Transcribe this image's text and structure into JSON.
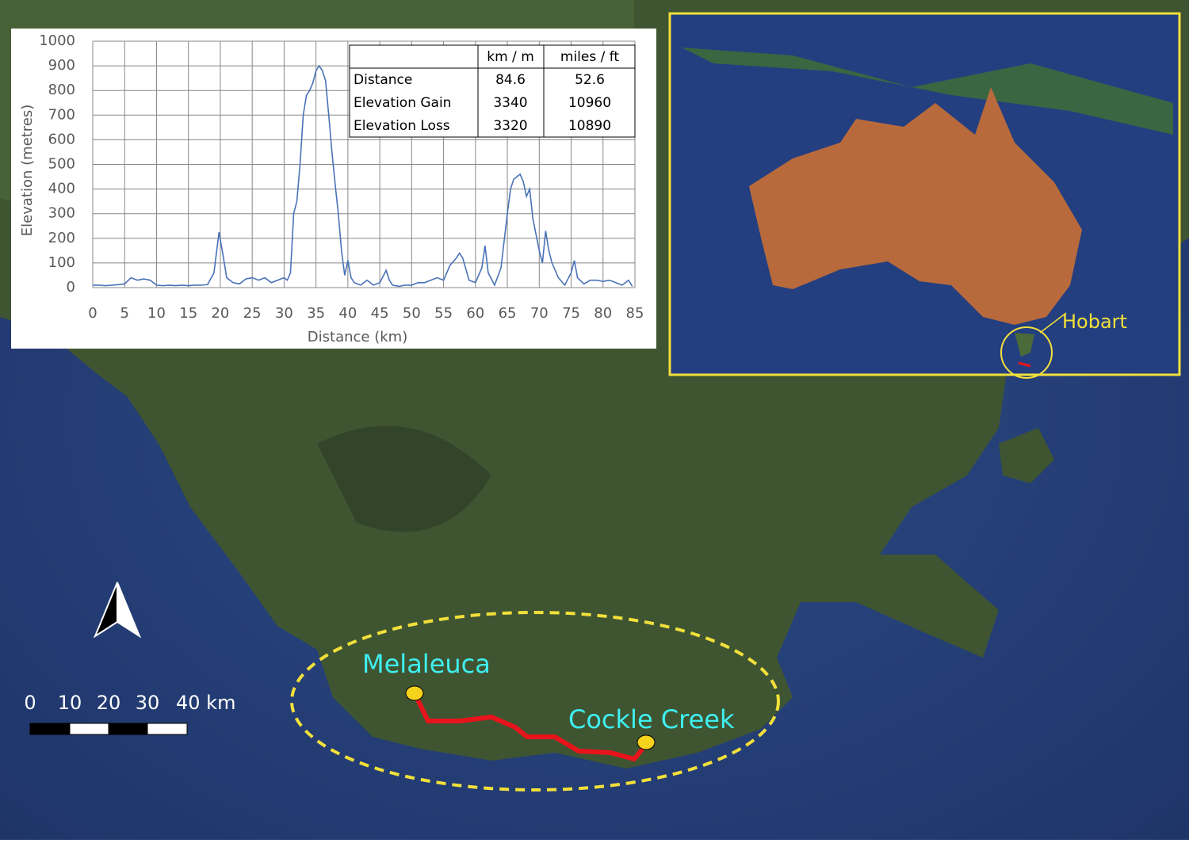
{
  "chart_data": {
    "type": "line",
    "x_label": "Distance (km)",
    "y_label": "Elevation (metres)",
    "x": [
      0,
      1,
      2,
      3,
      4,
      5,
      6,
      7,
      8,
      9,
      10,
      11,
      12,
      13,
      14,
      15,
      16,
      17,
      18,
      19,
      19.8,
      20.5,
      21,
      22,
      23,
      24,
      25,
      26,
      27,
      28,
      29,
      30,
      30.5,
      31,
      31.5,
      32,
      32.5,
      33,
      33.5,
      34,
      34.5,
      35,
      35.5,
      36,
      36.5,
      37,
      37.5,
      38,
      38.5,
      39,
      39.5,
      40,
      40.5,
      41,
      42,
      43,
      44,
      45,
      46,
      46.5,
      47,
      48,
      49,
      50,
      51,
      52,
      53,
      54,
      55,
      56,
      57,
      57.5,
      58,
      59,
      60,
      61,
      61.5,
      62,
      63,
      64,
      65,
      65.5,
      66,
      67,
      67.5,
      68,
      68.5,
      69,
      70,
      70.5,
      71,
      71.5,
      72,
      73,
      74,
      75,
      75.5,
      76,
      77,
      78,
      79,
      80,
      81,
      82,
      83,
      84,
      84.6
    ],
    "series": [
      {
        "name": "Elevation",
        "color": "#4a72b8",
        "values": [
          10,
          10,
          8,
          10,
          12,
          15,
          40,
          30,
          35,
          30,
          10,
          8,
          10,
          8,
          10,
          8,
          10,
          10,
          12,
          60,
          225,
          120,
          40,
          20,
          15,
          35,
          40,
          30,
          40,
          20,
          30,
          40,
          30,
          60,
          300,
          350,
          500,
          700,
          780,
          800,
          830,
          880,
          900,
          880,
          840,
          700,
          550,
          420,
          300,
          150,
          50,
          110,
          40,
          20,
          10,
          30,
          10,
          20,
          70,
          30,
          10,
          5,
          10,
          10,
          20,
          20,
          30,
          40,
          30,
          90,
          120,
          140,
          120,
          30,
          20,
          80,
          170,
          60,
          10,
          80,
          300,
          400,
          440,
          460,
          430,
          370,
          400,
          280,
          150,
          100,
          230,
          150,
          100,
          40,
          10,
          60,
          110,
          40,
          15,
          30,
          30,
          25,
          30,
          20,
          10,
          30,
          5
        ]
      }
    ],
    "xlim": [
      0,
      85
    ],
    "ylim": [
      0,
      1000
    ],
    "xticks": [
      0,
      5,
      10,
      15,
      20,
      25,
      30,
      35,
      40,
      45,
      50,
      55,
      60,
      65,
      70,
      75,
      80,
      85
    ],
    "yticks": [
      0,
      100,
      200,
      300,
      400,
      500,
      600,
      700,
      800,
      900,
      1000
    ],
    "grid": true
  },
  "table": {
    "header": [
      "km / m",
      "miles / ft"
    ],
    "rows": [
      [
        "Distance",
        84.6,
        52.6
      ],
      [
        "Elevation Gain",
        3340,
        10960
      ],
      [
        "Elevation Loss",
        3320,
        10890
      ]
    ]
  },
  "map": {
    "places": [
      "Melaleuca",
      "Cockle Creek"
    ],
    "inset_label": "Hobart",
    "scale_bar": [
      "0",
      "10",
      "20",
      "30",
      "40 km"
    ]
  }
}
